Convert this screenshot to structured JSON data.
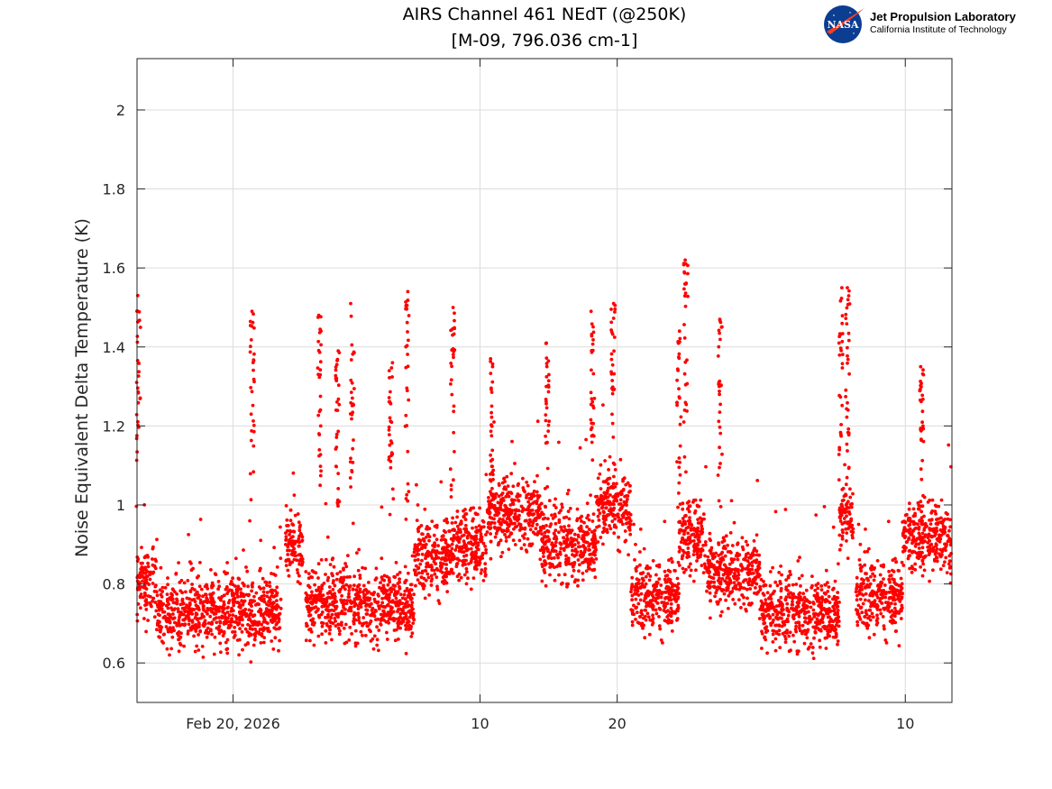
{
  "logo": {
    "agency": "NASA",
    "line1": "Jet Propulsion Laboratory",
    "line2": "California Institute of Technology"
  },
  "chart_data": {
    "type": "scatter",
    "title": "AIRS Channel 461 NEdT (@250K)",
    "subtitle": "[M-09, 796.036 cm-1]",
    "xlabel": "",
    "ylabel": "Noise Equivalent Delta Temperature (K)",
    "x_units": "days since Feb 20, 2026",
    "xlim": [
      -7.0,
      52.4
    ],
    "ylim": [
      0.5,
      2.13
    ],
    "xticks": [
      {
        "value": 0,
        "label": "Feb 20, 2026"
      },
      {
        "value": 18,
        "label": "10"
      },
      {
        "value": 28,
        "label": "20"
      },
      {
        "value": 49,
        "label": "10"
      }
    ],
    "yticks": [
      {
        "value": 0.6,
        "label": "0.6"
      },
      {
        "value": 0.8,
        "label": "0.8"
      },
      {
        "value": 1.0,
        "label": "1"
      },
      {
        "value": 1.2,
        "label": "1.2"
      },
      {
        "value": 1.4,
        "label": "1.4"
      },
      {
        "value": 1.6,
        "label": "1.6"
      },
      {
        "value": 1.8,
        "label": "1.8"
      },
      {
        "value": 2.0,
        "label": "2"
      }
    ],
    "grid": true,
    "marker_color": "#ff0000",
    "points_per_day": 80,
    "spread_K": 0.05,
    "baseline_segments": [
      {
        "from": -7.0,
        "to": -5.6,
        "mean": 0.8
      },
      {
        "from": -5.6,
        "to": 3.5,
        "mean": 0.73
      },
      {
        "from": 3.8,
        "to": 5.1,
        "mean": 0.9
      },
      {
        "from": 5.3,
        "to": 13.2,
        "mean": 0.75
      },
      {
        "from": 13.2,
        "to": 16.0,
        "mean": 0.87
      },
      {
        "from": 16.0,
        "to": 18.5,
        "mean": 0.9
      },
      {
        "from": 18.5,
        "to": 22.5,
        "mean": 0.98
      },
      {
        "from": 22.5,
        "to": 26.5,
        "mean": 0.9
      },
      {
        "from": 26.5,
        "to": 29.0,
        "mean": 1.0
      },
      {
        "from": 29.0,
        "to": 32.5,
        "mean": 0.77
      },
      {
        "from": 32.5,
        "to": 34.5,
        "mean": 0.92
      },
      {
        "from": 34.5,
        "to": 38.5,
        "mean": 0.83
      },
      {
        "from": 38.5,
        "to": 44.2,
        "mean": 0.73
      },
      {
        "from": 44.2,
        "to": 45.2,
        "mean": 0.98
      },
      {
        "from": 45.4,
        "to": 48.8,
        "mean": 0.77
      },
      {
        "from": 48.8,
        "to": 52.4,
        "mean": 0.92
      }
    ],
    "spikes": [
      {
        "day": -6.9,
        "peak": 1.53
      },
      {
        "day": 1.4,
        "peak": 1.49
      },
      {
        "day": 6.3,
        "peak": 1.48
      },
      {
        "day": 7.6,
        "peak": 1.39
      },
      {
        "day": 8.7,
        "peak": 1.51
      },
      {
        "day": 11.5,
        "peak": 1.36
      },
      {
        "day": 12.7,
        "peak": 1.54
      },
      {
        "day": 16.0,
        "peak": 1.5
      },
      {
        "day": 18.9,
        "peak": 1.37
      },
      {
        "day": 22.9,
        "peak": 1.41
      },
      {
        "day": 26.2,
        "peak": 1.49
      },
      {
        "day": 27.7,
        "peak": 1.51
      },
      {
        "day": 32.5,
        "peak": 1.44
      },
      {
        "day": 33.0,
        "peak": 1.62
      },
      {
        "day": 35.5,
        "peak": 1.47
      },
      {
        "day": 44.3,
        "peak": 1.55
      },
      {
        "day": 44.8,
        "peak": 1.55
      },
      {
        "day": 50.2,
        "peak": 1.35
      }
    ]
  }
}
